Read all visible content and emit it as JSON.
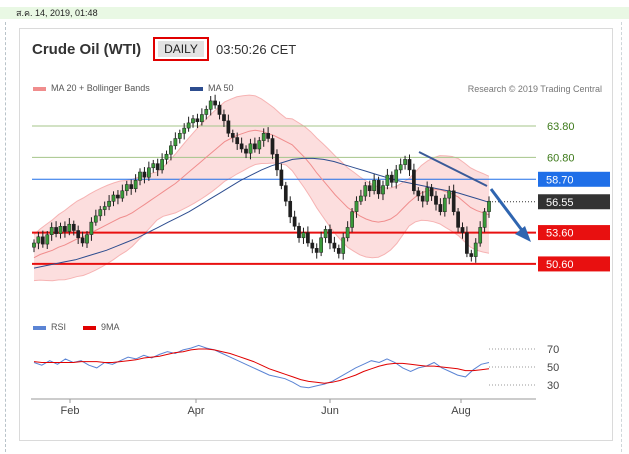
{
  "timestamp": "ส.ค. 14, 2019, 01:48",
  "header": {
    "title": "Crude Oil (WTI)",
    "period": "DAILY",
    "time": "03:50:26 CET"
  },
  "legend": {
    "ma20_label": "MA 20 + Bollinger Bands",
    "ma50_label": "MA 50",
    "ma20_color": "#f08d8d",
    "ma50_color": "#2d4d8f",
    "credit": "Research © 2019 Trading Central"
  },
  "rsi_legend": {
    "rsi_label": "RSI",
    "ma_label": "9MA",
    "rsi_color": "#5b84d4",
    "ma_color": "#e00000"
  },
  "chart_data": [
    {
      "type": "candlestick",
      "title": "Crude Oil (WTI)",
      "x_ticks": [
        "Feb",
        "Apr",
        "Jun",
        "Aug"
      ],
      "ylim": [
        46,
        66
      ],
      "levels": [
        {
          "value": 63.8,
          "label": "63.80",
          "kind": "resistance",
          "color": "#a4c58a"
        },
        {
          "value": 60.8,
          "label": "60.80",
          "kind": "resistance",
          "color": "#a4c58a"
        },
        {
          "value": 58.7,
          "label": "58.70",
          "kind": "pivot",
          "color": "#1f6fe8"
        },
        {
          "value": 56.55,
          "label": "56.55",
          "kind": "last",
          "color": "#333333"
        },
        {
          "value": 53.6,
          "label": "53.60",
          "kind": "support",
          "color": "#e81010"
        },
        {
          "value": 50.6,
          "label": "50.60",
          "kind": "support",
          "color": "#e81010"
        }
      ],
      "series": [
        {
          "name": "Close",
          "values": [
            52.6,
            53.2,
            52.5,
            53.4,
            54.1,
            53.5,
            54.2,
            53.7,
            54.4,
            53.8,
            53.1,
            52.6,
            53.4,
            54.6,
            55.2,
            55.8,
            56.1,
            56.6,
            57.2,
            56.9,
            57.6,
            58.2,
            57.8,
            58.6,
            59.4,
            58.9,
            59.8,
            60.2,
            59.6,
            60.6,
            61.1,
            61.9,
            62.6,
            63.1,
            63.6,
            64.1,
            64.5,
            64.2,
            64.9,
            65.4,
            66.2,
            65.8,
            64.9,
            64.3,
            63.1,
            62.7,
            62.1,
            61.6,
            61.2,
            62.1,
            61.6,
            62.4,
            63.1,
            62.6,
            61.1,
            59.6,
            58.1,
            56.6,
            55.1,
            54.2,
            53.1,
            53.6,
            52.6,
            52.1,
            51.7,
            53.1,
            53.9,
            52.6,
            52.1,
            51.6,
            53.1,
            54.1,
            55.6,
            56.6,
            57.1,
            58.1,
            57.6,
            58.6,
            57.3,
            58.1,
            59.1,
            58.4,
            59.6,
            60.1,
            60.6,
            59.6,
            57.6,
            57.1,
            56.6,
            57.9,
            57.1,
            56.3,
            55.6,
            56.9,
            57.6,
            55.6,
            54.1,
            53.6,
            51.6,
            51.3,
            52.6,
            54.1,
            55.6,
            56.6
          ]
        },
        {
          "name": "MA 20",
          "values": [
            51.2,
            51.5,
            51.7,
            51.9,
            52.2,
            52.4,
            52.7,
            53.0,
            53.2,
            53.5,
            53.8,
            54.1,
            54.4,
            54.7,
            55.0,
            55.2,
            55.5,
            55.9,
            56.3,
            56.7,
            57.1,
            57.5,
            57.9,
            58.3,
            58.8,
            59.3,
            59.8,
            60.3,
            60.8,
            61.3,
            61.8,
            62.3,
            62.6,
            62.9,
            63.1,
            63.3,
            63.4,
            63.3,
            63.1,
            62.9,
            62.6,
            62.3,
            62.0,
            61.4,
            60.8,
            60.1,
            59.3,
            58.6,
            57.9,
            57.2,
            56.6,
            56.0,
            55.6,
            55.2,
            54.9,
            54.7,
            54.6,
            54.7,
            54.9,
            55.3,
            55.9,
            56.5,
            57.0,
            57.4,
            57.6,
            57.7,
            57.7,
            57.5,
            57.3,
            57.0,
            56.5,
            56.0,
            55.7,
            55.5,
            55.3
          ]
        },
        {
          "name": "MA 50",
          "values": [
            50.2,
            50.4,
            50.6,
            50.8,
            51.0,
            51.3,
            51.6,
            51.9,
            52.3,
            52.7,
            53.1,
            53.6,
            54.1,
            54.6,
            55.1,
            55.6,
            56.2,
            56.8,
            57.4,
            58.0,
            58.6,
            59.1,
            59.6,
            60.0,
            60.3,
            60.6,
            60.7,
            60.7,
            60.6,
            60.4,
            60.1,
            59.8,
            59.5,
            59.2,
            58.9,
            58.6,
            58.4,
            58.2,
            58.0,
            57.8,
            57.6,
            57.4,
            57.1,
            56.8,
            56.5
          ]
        }
      ]
    },
    {
      "type": "line",
      "title": "RSI",
      "x_ticks": [
        "Feb",
        "Apr",
        "Jun",
        "Aug"
      ],
      "y_ticks": [
        70,
        50,
        30
      ],
      "ylim": [
        20,
        80
      ],
      "series": [
        {
          "name": "RSI",
          "values": [
            55,
            52,
            57,
            53,
            59,
            55,
            57,
            52,
            49,
            55,
            53,
            57,
            61,
            59,
            63,
            60,
            64,
            67,
            65,
            69,
            71,
            74,
            71,
            69,
            65,
            61,
            57,
            53,
            49,
            45,
            41,
            39,
            37,
            33,
            28,
            27,
            29,
            31,
            34,
            39,
            44,
            49,
            53,
            57,
            55,
            59,
            55,
            49,
            45,
            49,
            51,
            55,
            49,
            45,
            41,
            39,
            47,
            53,
            55
          ]
        },
        {
          "name": "9MA",
          "values": [
            56,
            55,
            55,
            55,
            55,
            55,
            56,
            56,
            56,
            55,
            55,
            56,
            57,
            58,
            60,
            61,
            62,
            64,
            66,
            67,
            69,
            70,
            70,
            69,
            67,
            65,
            62,
            59,
            56,
            52,
            48,
            45,
            42,
            39,
            36,
            34,
            33,
            32,
            33,
            35,
            38,
            41,
            45,
            48,
            51,
            53,
            54,
            54,
            53,
            52,
            51,
            51,
            50,
            49,
            48,
            46,
            46,
            47,
            48
          ]
        }
      ]
    }
  ]
}
